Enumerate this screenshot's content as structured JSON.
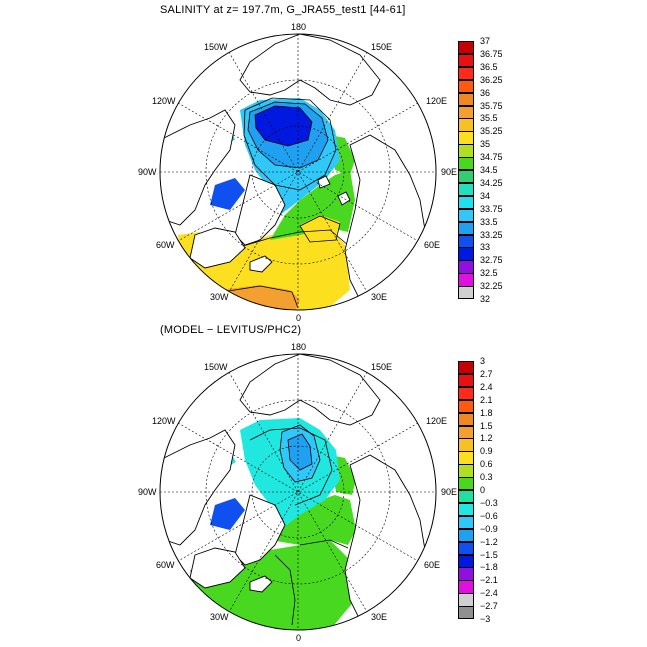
{
  "top": {
    "title": "SALINITY at z= 197.7m, G_JRA55_test1 [44-61]",
    "lon_labels": {
      "n": "180",
      "nw": "150W",
      "ne": "150E",
      "wn": "120W",
      "en": "120E",
      "w": "90W",
      "e": "90E",
      "ws": "60W",
      "es": "60E",
      "sw": "30W",
      "se": "30E",
      "s": "0"
    },
    "colorbar": {
      "labels": [
        "37",
        "36.75",
        "36.5",
        "36.25",
        "36",
        "35.75",
        "35.5",
        "35.25",
        "35",
        "34.75",
        "34.5",
        "34.25",
        "34",
        "33.75",
        "33.5",
        "33.25",
        "33",
        "32.75",
        "32.5",
        "32.25",
        "32"
      ],
      "colors": [
        "#c80000",
        "#e81010",
        "#ff2a1a",
        "#ff5a10",
        "#f08a20",
        "#f4a030",
        "#f8c020",
        "#fce020",
        "#b0e020",
        "#48d820",
        "#30d070",
        "#20e0c0",
        "#20e0f0",
        "#30c8f8",
        "#20a0f0",
        "#1050f0",
        "#0018e0",
        "#9010e0",
        "#e010e0",
        "#d0d0d0"
      ]
    }
  },
  "bottom": {
    "title": "(MODEL − LEVITUS/PHC2)",
    "lon_labels": {
      "n": "180",
      "nw": "150W",
      "ne": "150E",
      "wn": "120W",
      "en": "120E",
      "w": "90W",
      "e": "90E",
      "ws": "60W",
      "es": "60E",
      "sw": "30W",
      "se": "30E",
      "s": "0"
    },
    "colorbar": {
      "labels": [
        "3",
        "2.7",
        "2.4",
        "2.1",
        "1.8",
        "1.5",
        "1.2",
        "0.9",
        "0.6",
        "0.3",
        "0",
        "−0.3",
        "−0.6",
        "−0.9",
        "−1.2",
        "−1.5",
        "−1.8",
        "−2.1",
        "−2.4",
        "−2.7",
        "−3"
      ],
      "colors": [
        "#c80000",
        "#e81010",
        "#ff2a1a",
        "#ff5a10",
        "#f08a20",
        "#f4a030",
        "#f8c020",
        "#fce020",
        "#b0e020",
        "#48d820",
        "#20e0a0",
        "#20e8e0",
        "#30c8f8",
        "#20a0f0",
        "#1050f0",
        "#0018e0",
        "#9010e0",
        "#e010e0",
        "#d0d0d0",
        "#909090"
      ]
    }
  }
}
